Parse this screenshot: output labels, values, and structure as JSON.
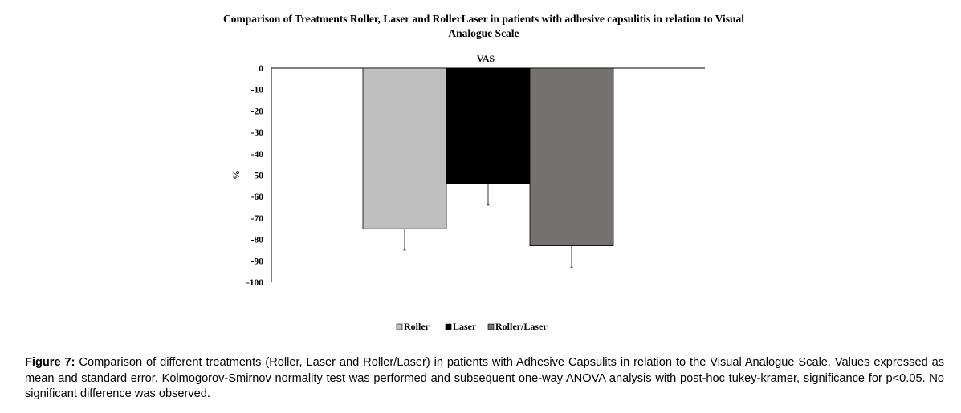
{
  "chart_data": {
    "type": "bar",
    "title": "Comparison of Treatments Roller, Laser and RollerLaser in patients with adhesive capsulitis in relation to Visual Analogue Scale",
    "subtitle": "VAS",
    "xlabel": "",
    "ylabel": "%",
    "ylim": [
      -100,
      0
    ],
    "yticks": [
      0,
      -10,
      -20,
      -30,
      -40,
      -50,
      -60,
      -70,
      -80,
      -90,
      -100
    ],
    "grid": false,
    "legend_position": "bottom",
    "series": [
      {
        "name": "Roller",
        "value": -75,
        "error": 10,
        "color": "#bfbfbf"
      },
      {
        "name": "Laser",
        "value": -54,
        "error": 10,
        "color": "#000000"
      },
      {
        "name": "Roller/Laser",
        "value": -83,
        "error": 10,
        "color": "#767171"
      }
    ]
  },
  "caption": {
    "label": "Figure 7:",
    "text": " Comparison of different treatments (Roller, Laser and Roller/Laser) in patients with Adhesive Capsulits in relation to the Visual Analogue Scale. Values expressed as mean and standard error. Kolmogorov-Smirnov normality test was performed and subsequent one-way ANOVA analysis with post-hoc tukey-kramer, significance for p<0.05. No significant difference was observed."
  }
}
